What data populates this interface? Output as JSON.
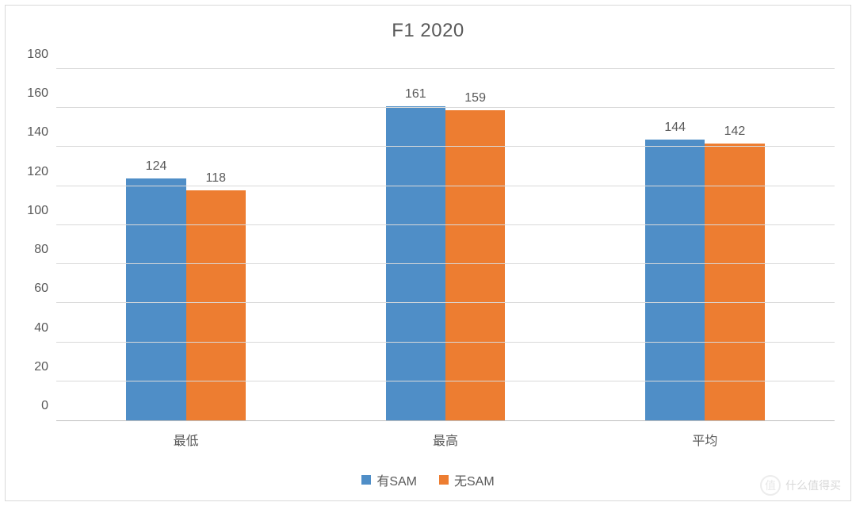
{
  "chart": {
    "type": "bar",
    "title": "F1 2020",
    "title_fontsize": 24,
    "title_color": "#595959",
    "background_color": "#ffffff",
    "border_color": "#d9d9d9",
    "grid_color": "#d9d9d9",
    "axis_color": "#bfbfbf",
    "label_color": "#595959",
    "label_fontsize": 16,
    "ylim": [
      0,
      180
    ],
    "ytick_step": 20,
    "yticks": [
      0,
      20,
      40,
      60,
      80,
      100,
      120,
      140,
      160,
      180
    ],
    "categories": [
      "最低",
      "最高",
      "平均"
    ],
    "series": [
      {
        "name": "有SAM",
        "color": "#4f8ec7",
        "values": [
          124,
          161,
          144
        ]
      },
      {
        "name": "无SAM",
        "color": "#ed7d31",
        "values": [
          118,
          159,
          142
        ]
      }
    ],
    "bar_width_pct": 23,
    "bar_gap_pct": 0,
    "data_label_fontsize": 16,
    "legend_position": "bottom"
  },
  "watermark": {
    "badge": "值",
    "text": "什么值得买"
  }
}
